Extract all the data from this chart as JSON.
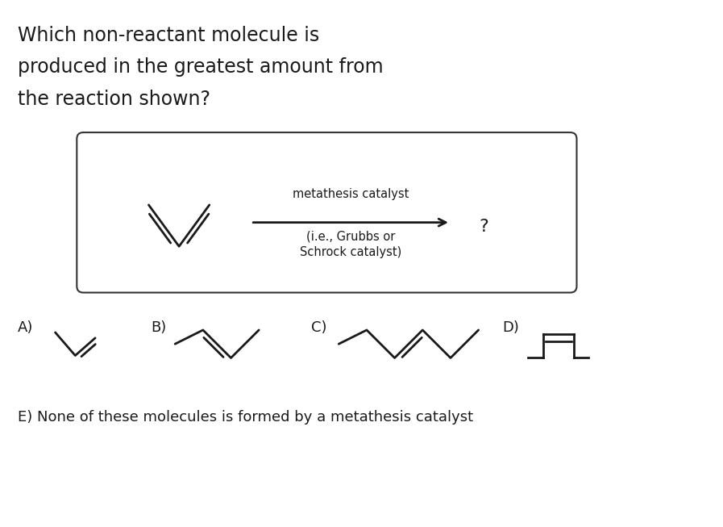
{
  "title_lines": [
    "Which non-reactant molecule is",
    "produced in the greatest amount from",
    "the reaction shown?"
  ],
  "catalyst_label_top": "metathesis catalyst",
  "catalyst_label_bottom": "(i.e., Grubbs or\nSchrock catalyst)",
  "question_mark": "?",
  "option_e_text": "E) None of these molecules is formed by a metathesis catalyst",
  "answer_labels": [
    "A)",
    "B)",
    "C)",
    "D)"
  ],
  "background_color": "#ffffff",
  "line_color": "#1a1a1a",
  "font_size_title": 17,
  "font_size_labels": 13,
  "font_size_option_e": 13,
  "font_size_catalyst": 10.5,
  "font_size_qmark": 16
}
